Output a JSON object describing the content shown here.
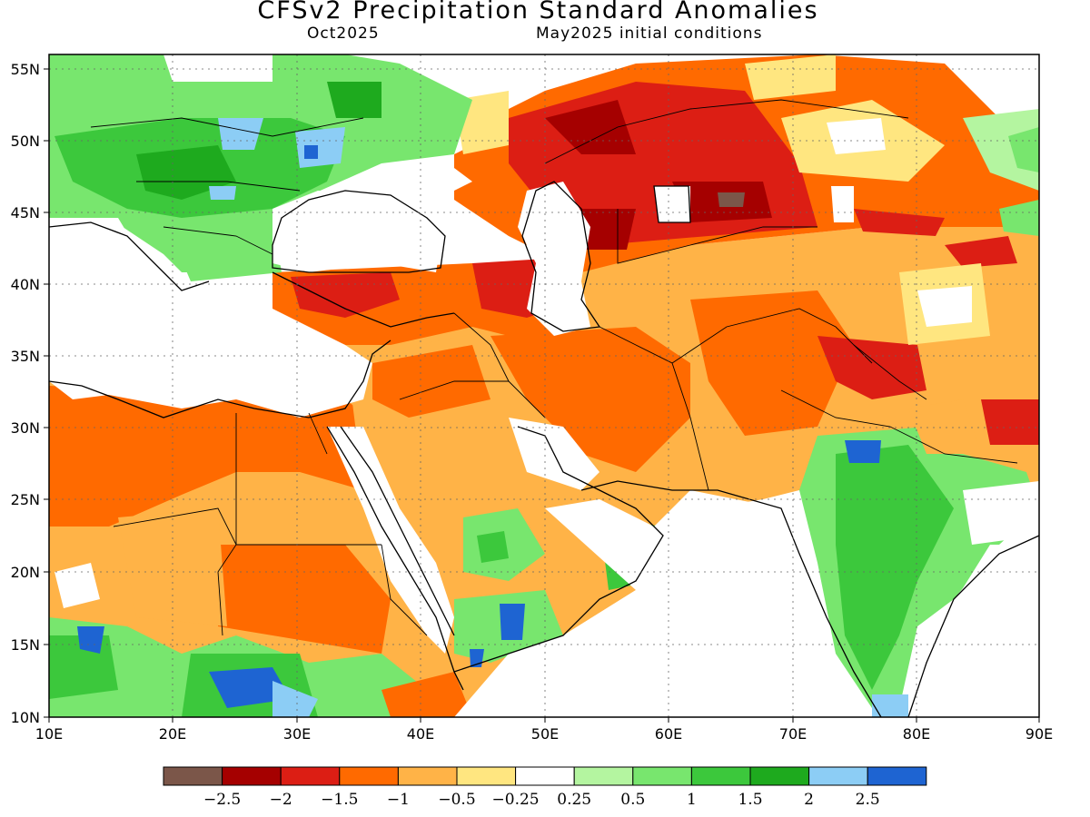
{
  "title": "CFSv2 Precipitation Standard Anomalies",
  "valid_month": "Oct2025",
  "init_conditions": "May2025 initial conditions",
  "lat_labels": [
    "55N",
    "50N",
    "45N",
    "40N",
    "35N",
    "30N",
    "25N",
    "20N",
    "15N",
    "10N"
  ],
  "lon_labels": [
    "10E",
    "20E",
    "30E",
    "40E",
    "50E",
    "60E",
    "70E",
    "80E",
    "90E"
  ],
  "colorbar": {
    "colors": [
      "#7b5649",
      "#a50000",
      "#dc1e14",
      "#ff6a00",
      "#ffb347",
      "#ffe680",
      "#ffffff",
      "#b4f5a0",
      "#78e66e",
      "#3cc83c",
      "#1eaa1e",
      "#8ccdf5",
      "#1e64d2"
    ],
    "labels": [
      "-2.5",
      "-2",
      "-1.5",
      "-1",
      "-0.5",
      "-0.25",
      "0.25",
      "0.5",
      "1",
      "1.5",
      "2",
      "2.5"
    ]
  },
  "palette": {
    "orange_dark": "#ff6a00",
    "orange": "#ffb347",
    "yellow": "#ffe680",
    "red": "#dc1e14",
    "dark_red": "#a50000",
    "brown": "#7b5649",
    "light_green": "#b4f5a0",
    "green": "#78e66e",
    "mid_green": "#3cc83c",
    "dark_green": "#1eaa1e",
    "light_blue": "#8ccdf5",
    "blue": "#1e64d2",
    "white": "#ffffff"
  }
}
